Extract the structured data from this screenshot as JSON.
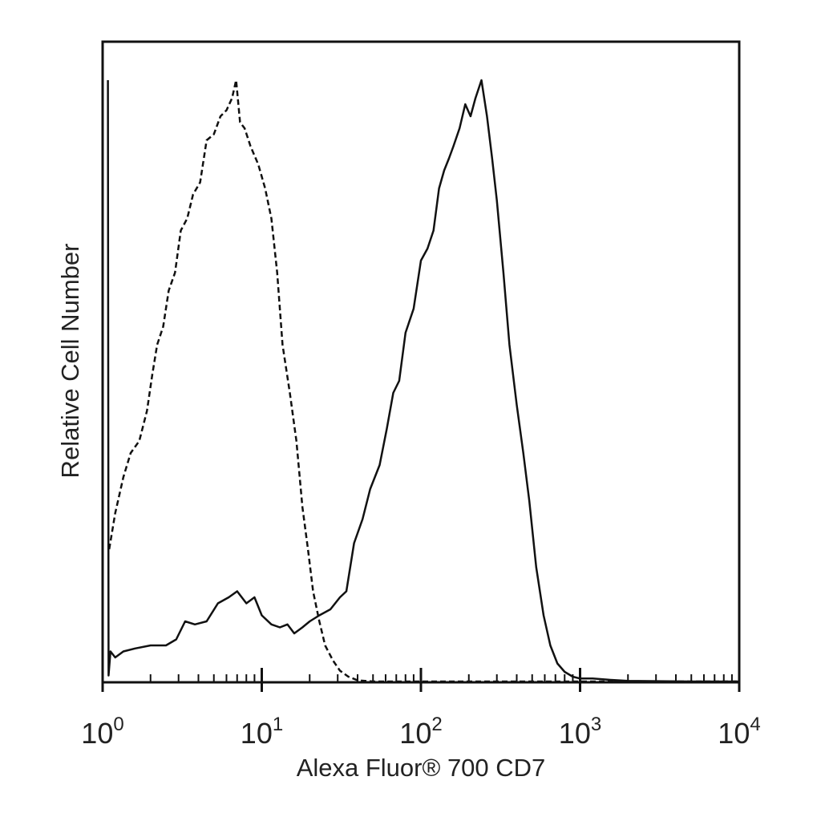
{
  "chart_data": {
    "type": "line",
    "title": "",
    "xlabel": "Alexa Fluor® 700 CD7",
    "ylabel": "Relative Cell Number",
    "x_scale": "log",
    "xlim": [
      1,
      10000
    ],
    "ylim": [
      0,
      100
    ],
    "y_ticks_shown": false,
    "x_ticks": [
      {
        "base": "10",
        "exp": "0",
        "value": 1
      },
      {
        "base": "10",
        "exp": "1",
        "value": 10
      },
      {
        "base": "10",
        "exp": "2",
        "value": 100
      },
      {
        "base": "10",
        "exp": "3",
        "value": 1000
      },
      {
        "base": "10",
        "exp": "4",
        "value": 10000
      }
    ],
    "series": [
      {
        "style": "dashed",
        "color": "#111111",
        "points": [
          [
            1.1,
            22
          ],
          [
            1.2,
            28
          ],
          [
            1.35,
            34
          ],
          [
            1.5,
            38
          ],
          [
            1.7,
            40
          ],
          [
            1.9,
            45
          ],
          [
            2.05,
            51
          ],
          [
            2.2,
            56
          ],
          [
            2.4,
            59
          ],
          [
            2.6,
            65
          ],
          [
            2.85,
            68
          ],
          [
            3.1,
            75
          ],
          [
            3.4,
            77
          ],
          [
            3.7,
            81
          ],
          [
            4.1,
            83
          ],
          [
            4.5,
            90
          ],
          [
            5.0,
            91
          ],
          [
            5.5,
            94
          ],
          [
            6.0,
            95
          ],
          [
            6.5,
            97
          ],
          [
            6.9,
            100
          ],
          [
            7.3,
            93
          ],
          [
            7.8,
            92
          ],
          [
            8.5,
            89
          ],
          [
            9.5,
            86
          ],
          [
            10.5,
            82
          ],
          [
            11.5,
            77
          ],
          [
            12.5,
            68
          ],
          [
            13.5,
            56
          ],
          [
            15,
            48
          ],
          [
            16.5,
            40
          ],
          [
            18,
            29
          ],
          [
            19.5,
            22
          ],
          [
            21,
            15
          ],
          [
            23,
            10
          ],
          [
            25,
            6
          ],
          [
            28,
            3.5
          ],
          [
            31,
            1.8
          ],
          [
            35,
            0.8
          ],
          [
            40,
            0.2
          ],
          [
            50,
            0
          ],
          [
            100,
            0
          ],
          [
            1000,
            0
          ],
          [
            10000,
            0
          ]
        ]
      },
      {
        "style": "solid",
        "color": "#111111",
        "points": [
          [
            1.08,
            100
          ],
          [
            1.09,
            1
          ],
          [
            1.12,
            5
          ],
          [
            1.2,
            4
          ],
          [
            1.35,
            5
          ],
          [
            1.6,
            5.5
          ],
          [
            2.0,
            6
          ],
          [
            2.5,
            6
          ],
          [
            2.9,
            7
          ],
          [
            3.3,
            10
          ],
          [
            3.8,
            9.5
          ],
          [
            4.5,
            10
          ],
          [
            5.3,
            13
          ],
          [
            6.2,
            14
          ],
          [
            7.0,
            15
          ],
          [
            8.0,
            13
          ],
          [
            9.0,
            14
          ],
          [
            10,
            11
          ],
          [
            11.5,
            9.5
          ],
          [
            13,
            9
          ],
          [
            14.5,
            9.5
          ],
          [
            16,
            8
          ],
          [
            18,
            9
          ],
          [
            20,
            10
          ],
          [
            23,
            11
          ],
          [
            27,
            12
          ],
          [
            31,
            14
          ],
          [
            34,
            15
          ],
          [
            38,
            23
          ],
          [
            43,
            27
          ],
          [
            48,
            32
          ],
          [
            55,
            36
          ],
          [
            61,
            42
          ],
          [
            67,
            48
          ],
          [
            73,
            50
          ],
          [
            80,
            58
          ],
          [
            90,
            62
          ],
          [
            100,
            70
          ],
          [
            110,
            72
          ],
          [
            120,
            75
          ],
          [
            130,
            82
          ],
          [
            140,
            85
          ],
          [
            150,
            87
          ],
          [
            160,
            89
          ],
          [
            175,
            92
          ],
          [
            190,
            96
          ],
          [
            205,
            94
          ],
          [
            220,
            97
          ],
          [
            240,
            100
          ],
          [
            260,
            94
          ],
          [
            280,
            87
          ],
          [
            300,
            80
          ],
          [
            330,
            68
          ],
          [
            360,
            56
          ],
          [
            400,
            46
          ],
          [
            440,
            38
          ],
          [
            480,
            30
          ],
          [
            530,
            19
          ],
          [
            590,
            11
          ],
          [
            650,
            6
          ],
          [
            720,
            3
          ],
          [
            800,
            1.6
          ],
          [
            900,
            0.8
          ],
          [
            1000,
            0.5
          ],
          [
            1200,
            0.5
          ],
          [
            1500,
            0.3
          ],
          [
            2000,
            0.1
          ],
          [
            5000,
            0
          ],
          [
            10000,
            0
          ]
        ]
      }
    ]
  }
}
